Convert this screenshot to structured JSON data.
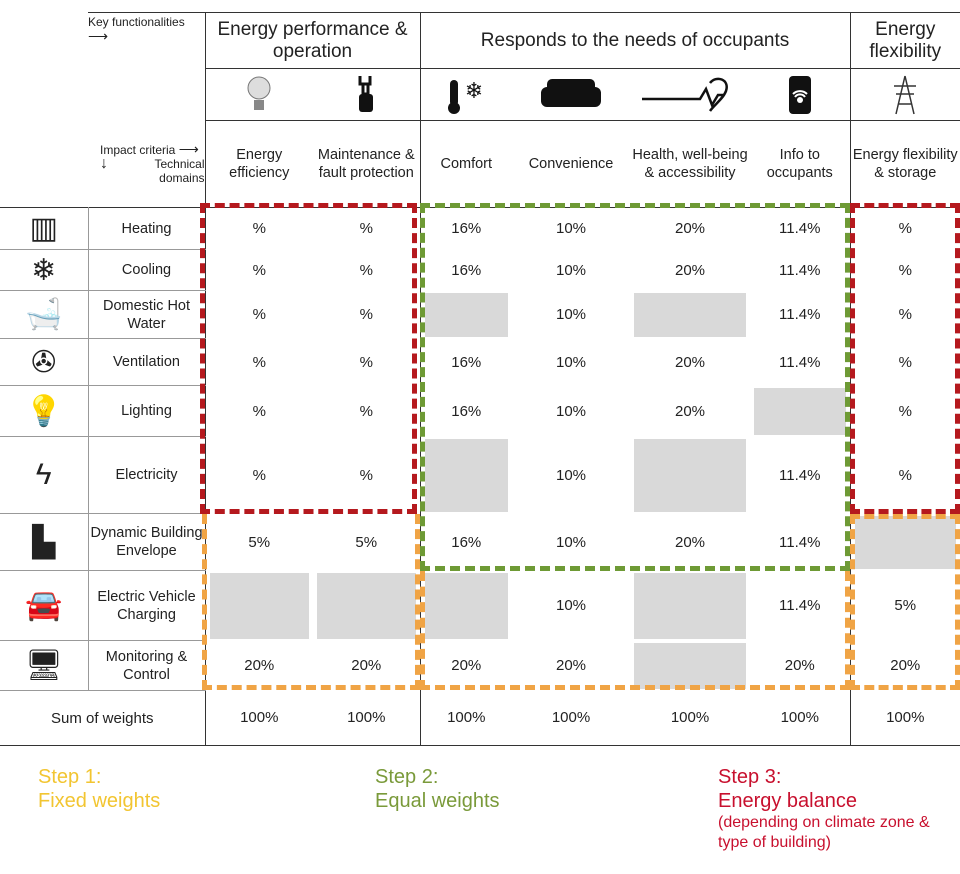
{
  "header": {
    "key_functionalities": "Key functionalities",
    "impact_criteria": "Impact criteria",
    "technical_domains": "Technical domains",
    "groups": [
      "Energy performance & operation",
      "Responds to the needs of occupants",
      "Energy flexibility"
    ],
    "criteria": [
      "Energy efficiency",
      "Maintenance & fault protection",
      "Comfort",
      "Convenience",
      "Health, well-being & accessibility",
      "Info to occupants",
      "Energy flexibility & storage"
    ],
    "criteria_icons": [
      "lightbulb-icon",
      "wrench-hand-icon",
      "thermometer-snowflake-icon",
      "sofa-icon",
      "heart-pulse-icon",
      "phone-wifi-icon",
      "power-pylon-icon"
    ]
  },
  "rows": [
    {
      "domain": "Heating",
      "icon": "radiator-icon",
      "values": [
        "%",
        "%",
        "16%",
        "10%",
        "20%",
        "11.4%",
        "%"
      ]
    },
    {
      "domain": "Cooling",
      "icon": "snowflake-icon",
      "values": [
        "%",
        "%",
        "16%",
        "10%",
        "20%",
        "11.4%",
        "%"
      ]
    },
    {
      "domain": "Domestic Hot Water",
      "icon": "bathtub-icon",
      "values": [
        "%",
        "%",
        null,
        "10%",
        null,
        "11.4%",
        "%"
      ]
    },
    {
      "domain": "Ventilation",
      "icon": "fan-icon",
      "values": [
        "%",
        "%",
        "16%",
        "10%",
        "20%",
        "11.4%",
        "%"
      ]
    },
    {
      "domain": "Lighting",
      "icon": "bulb-icon",
      "values": [
        "%",
        "%",
        "16%",
        "10%",
        "20%",
        null,
        "%"
      ]
    },
    {
      "domain": "Electricity",
      "icon": "lightning-icon",
      "values": [
        "%",
        "%",
        null,
        "10%",
        null,
        "11.4%",
        "%"
      ]
    },
    {
      "domain": "Dynamic Building Envelope",
      "icon": "buildings-icon",
      "values": [
        "5%",
        "5%",
        "16%",
        "10%",
        "20%",
        "11.4%",
        null
      ]
    },
    {
      "domain": "Electric Vehicle Charging",
      "icon": "ev-car-icon",
      "values": [
        null,
        null,
        null,
        "10%",
        null,
        "11.4%",
        "5%"
      ]
    },
    {
      "domain": "Monitoring & Control",
      "icon": "monitor-icon",
      "values": [
        "20%",
        "20%",
        "20%",
        "20%",
        null,
        "20%",
        "20%"
      ]
    }
  ],
  "sum": {
    "label": "Sum of weights",
    "values": [
      "100%",
      "100%",
      "100%",
      "100%",
      "100%",
      "100%",
      "100%"
    ]
  },
  "steps": [
    {
      "title": "Step 1:",
      "name": "Fixed weights",
      "color": "#f2c531"
    },
    {
      "title": "Step 2:",
      "name": "Equal weights",
      "color": "#7a9a3a"
    },
    {
      "title": "Step 3:",
      "name": "Energy balance",
      "note": "(depending on climate zone & type of building)",
      "color": "#c8102e"
    }
  ],
  "colors": {
    "red": "#b5191e",
    "green": "#6e9a35",
    "orange": "#f0a445",
    "grey": "#d9d9d9"
  }
}
